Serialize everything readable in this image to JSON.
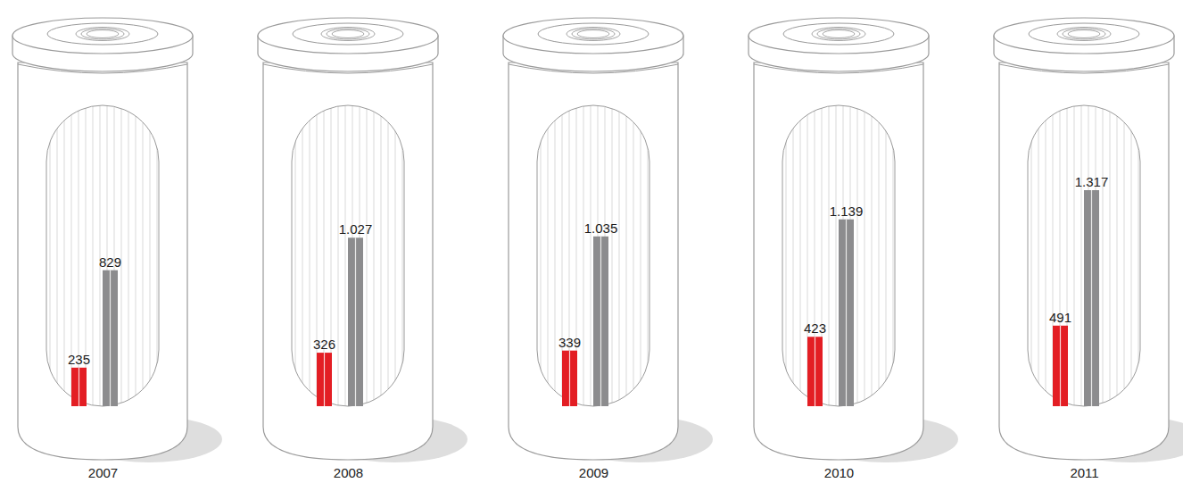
{
  "chart_data": {
    "type": "bar",
    "categories": [
      "2007",
      "2008",
      "2009",
      "2010",
      "2011"
    ],
    "series": [
      {
        "color": "#e31e24",
        "values": [
          235,
          326,
          339,
          423,
          491
        ]
      },
      {
        "color": "#8c8c8e",
        "values": [
          829,
          1027,
          1035,
          1139,
          1317
        ],
        "value_labels": [
          "829",
          "1.027",
          "1.035",
          "1.139",
          "1.317"
        ]
      }
    ],
    "data_labels": true,
    "tick_labels": "x"
  }
}
